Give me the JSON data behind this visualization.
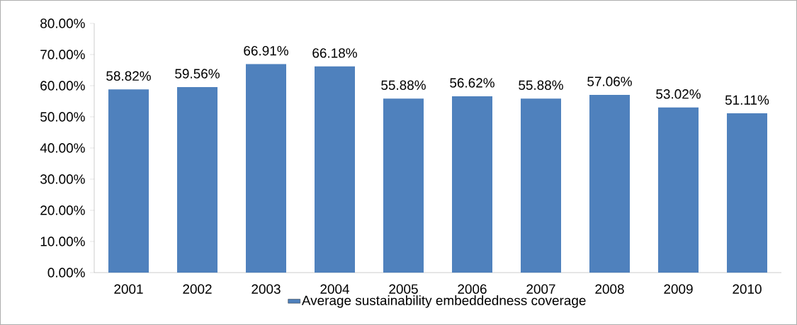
{
  "chart_data": {
    "type": "bar",
    "categories": [
      "2001",
      "2002",
      "2003",
      "2004",
      "2005",
      "2006",
      "2007",
      "2008",
      "2009",
      "2010"
    ],
    "series": [
      {
        "name": "Average sustainability embeddedness coverage",
        "color": "#4f81bd",
        "values": [
          58.82,
          59.56,
          66.91,
          66.18,
          55.88,
          56.62,
          55.88,
          57.06,
          53.02,
          51.11
        ],
        "value_labels": [
          "58.82%",
          "59.56%",
          "66.91%",
          "66.18%",
          "55.88%",
          "56.62%",
          "55.88%",
          "57.06%",
          "53.02%",
          "51.11%"
        ]
      }
    ],
    "ylim": [
      0,
      80
    ],
    "yticks": [
      {
        "value": 0,
        "label": "0.00%"
      },
      {
        "value": 10,
        "label": "10.00%"
      },
      {
        "value": 20,
        "label": "20.00%"
      },
      {
        "value": 30,
        "label": "30.00%"
      },
      {
        "value": 40,
        "label": "40.00%"
      },
      {
        "value": 50,
        "label": "50.00%"
      },
      {
        "value": 60,
        "label": "60.00%"
      },
      {
        "value": 70,
        "label": "70.00%"
      },
      {
        "value": 80,
        "label": "80.00%"
      }
    ],
    "legend": "bottom"
  }
}
